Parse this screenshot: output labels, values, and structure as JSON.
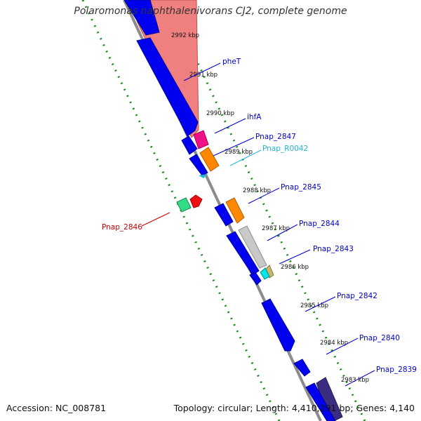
{
  "title": "Polaromonas naphthalenivorans CJ2, complete genome",
  "footer": {
    "accession": "Accession: NC_008781",
    "topology": "Topology: circular; Length: 4,410,291 bp; Genes: 4,140"
  },
  "colors": {
    "backbone": "#8c8c8c",
    "tick_dots": "#1a8a1a",
    "cds": "#0000ee",
    "label_blue": "#0000cc",
    "label_cyan": "#21b6d6",
    "label_red": "#cc0000"
  },
  "kbp_ticks": [
    "2992 kbp",
    "2991 kbp",
    "2990 kbp",
    "2989 kbp",
    "2988 kbp",
    "2987 kbp",
    "2986 kbp",
    "2985 kbp",
    "2984 kbp",
    "2983 kbp"
  ],
  "gene_labels": [
    {
      "text": "pheT",
      "color": "label_blue"
    },
    {
      "text": "ihfA",
      "color": "label_blue"
    },
    {
      "text": "Pnap_2847",
      "color": "label_blue"
    },
    {
      "text": "Pnap_R0042",
      "color": "label_cyan"
    },
    {
      "text": "Pnap_2845",
      "color": "label_blue"
    },
    {
      "text": "Pnap_2844",
      "color": "label_blue"
    },
    {
      "text": "Pnap_2843",
      "color": "label_blue"
    },
    {
      "text": "Pnap_2842",
      "color": "label_blue"
    },
    {
      "text": "Pnap_2840",
      "color": "label_blue"
    },
    {
      "text": "Pnap_2839",
      "color": "label_blue"
    },
    {
      "text": "Pnap_2846",
      "color": "label_red"
    }
  ]
}
